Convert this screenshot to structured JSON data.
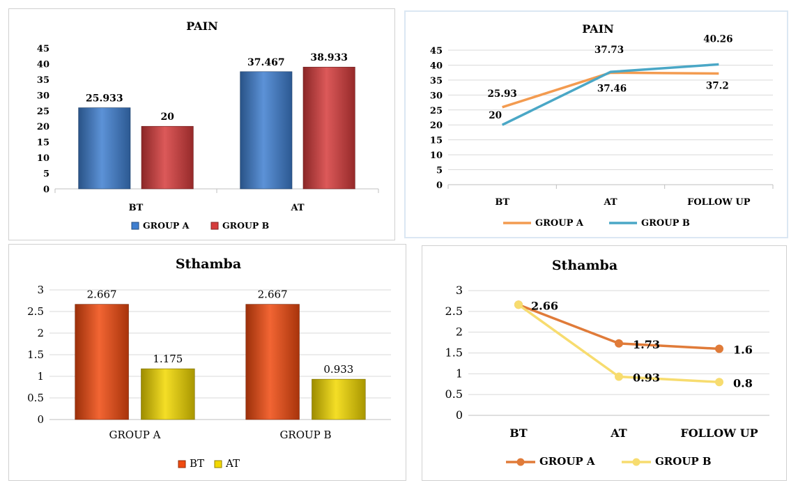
{
  "chart_data": [
    {
      "type": "bar",
      "title": "PAIN",
      "categories": [
        "BT",
        "AT"
      ],
      "series": [
        {
          "name": "GROUP A",
          "values": [
            25.933,
            37.467
          ],
          "labels": [
            "25.933",
            "37.467"
          ],
          "color": "#3f7fd0"
        },
        {
          "name": "GROUP B",
          "values": [
            20,
            38.933
          ],
          "labels": [
            "20",
            "38.933"
          ],
          "color": "#d63c3c"
        }
      ],
      "ylim": [
        0,
        45
      ],
      "yticks": [
        "0",
        "5",
        "10",
        "15",
        "20",
        "25",
        "30",
        "35",
        "40",
        "45"
      ],
      "gridlines": false,
      "legend_position": "bottom"
    },
    {
      "type": "line",
      "title": "PAIN",
      "categories": [
        "BT",
        "AT",
        "FOLLOW UP"
      ],
      "series": [
        {
          "name": "GROUP A",
          "values": [
            25.93,
            37.46,
            37.2
          ],
          "labels": [
            "25.93",
            "37.46",
            "37.2"
          ],
          "color": "#f39b50"
        },
        {
          "name": "GROUP B",
          "values": [
            20,
            37.73,
            40.26
          ],
          "labels": [
            "20",
            "37.73",
            "40.26"
          ],
          "color": "#4aa7c6"
        }
      ],
      "ylim": [
        0,
        45
      ],
      "yticks": [
        "0",
        "5",
        "10",
        "15",
        "20",
        "25",
        "30",
        "35",
        "40",
        "45"
      ],
      "gridlines": true,
      "legend_position": "bottom"
    },
    {
      "type": "bar",
      "title": "Sthamba",
      "categories": [
        "GROUP A",
        "GROUP B"
      ],
      "series": [
        {
          "name": "BT",
          "values": [
            2.667,
            2.667
          ],
          "labels": [
            "2.667",
            "2.667"
          ],
          "color": "#f04a0f"
        },
        {
          "name": "AT",
          "values": [
            1.175,
            0.933
          ],
          "labels": [
            "1.175",
            "0.933"
          ],
          "color": "#f2d800"
        }
      ],
      "ylim": [
        0,
        3
      ],
      "yticks": [
        "0",
        "0.5",
        "1",
        "1.5",
        "2",
        "2.5",
        "3"
      ],
      "gridlines": true,
      "legend_position": "bottom"
    },
    {
      "type": "line",
      "title": "Sthamba",
      "categories": [
        "BT",
        "AT",
        "FOLLOW UP"
      ],
      "series": [
        {
          "name": "GROUP A",
          "values": [
            2.66,
            1.73,
            1.6
          ],
          "labels": [
            "2.66",
            "1.73",
            "1.6"
          ],
          "color": "#e07b39"
        },
        {
          "name": "GROUP B",
          "values": [
            2.66,
            0.93,
            0.8
          ],
          "labels": [
            "",
            "0.93",
            "0.8"
          ],
          "color": "#f7dc6f"
        }
      ],
      "ylim": [
        0,
        3
      ],
      "yticks": [
        "0",
        "0.5",
        "1",
        "1.5",
        "2",
        "2.5",
        "3"
      ],
      "gridlines": true,
      "legend_position": "bottom"
    }
  ]
}
